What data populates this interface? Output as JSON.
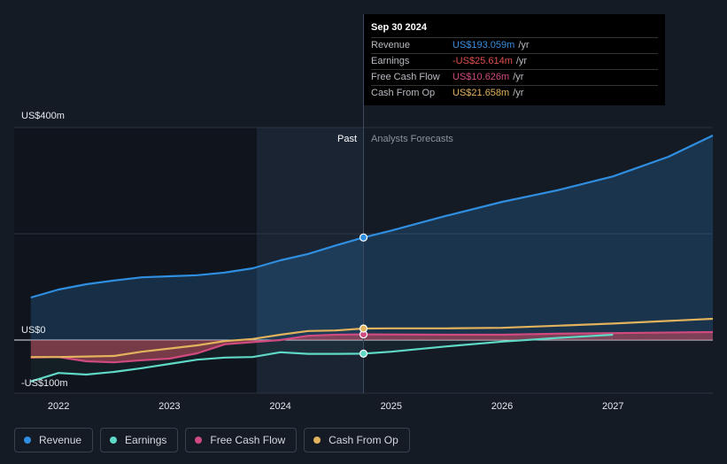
{
  "tooltip": {
    "date": "Sep 30 2024",
    "rows": [
      {
        "label": "Revenue",
        "value": "US$193.059m",
        "unit": "/yr",
        "color": "#3a8ee0"
      },
      {
        "label": "Earnings",
        "value": "-US$25.614m",
        "unit": "/yr",
        "color": "#e04f4f"
      },
      {
        "label": "Free Cash Flow",
        "value": "US$10.626m",
        "unit": "/yr",
        "color": "#d04a7f"
      },
      {
        "label": "Cash From Op",
        "value": "US$21.658m",
        "unit": "/yr",
        "color": "#e2b25c"
      }
    ]
  },
  "legend": [
    {
      "label": "Revenue",
      "color": "#2f8ee0"
    },
    {
      "label": "Earnings",
      "color": "#5fd9c6"
    },
    {
      "label": "Free Cash Flow",
      "color": "#d04a7f"
    },
    {
      "label": "Cash From Op",
      "color": "#e2b25c"
    }
  ],
  "chart_data": {
    "type": "line",
    "past_label": "Past",
    "forecast_label": "Analysts Forecasts",
    "divider_x": 2024.75,
    "y_tick_labels": [
      {
        "value": 400,
        "label": "US$400m"
      },
      {
        "value": 0,
        "label": "US$0"
      },
      {
        "value": -100,
        "label": "-US$100m"
      }
    ],
    "x_ticks": [
      2022,
      2023,
      2024,
      2025,
      2026,
      2027
    ],
    "xlim": [
      2021.6,
      2027.9
    ],
    "ylim": [
      -100,
      400
    ],
    "grid": true,
    "series": [
      {
        "name": "Revenue",
        "color": "#2f8ee0",
        "points": [
          [
            2021.75,
            80
          ],
          [
            2022.0,
            95
          ],
          [
            2022.25,
            105
          ],
          [
            2022.5,
            112
          ],
          [
            2022.75,
            118
          ],
          [
            2023.0,
            120
          ],
          [
            2023.25,
            122
          ],
          [
            2023.5,
            127
          ],
          [
            2023.75,
            135
          ],
          [
            2024.0,
            150
          ],
          [
            2024.25,
            162
          ],
          [
            2024.5,
            178
          ],
          [
            2024.75,
            193
          ],
          [
            2025.0,
            206
          ],
          [
            2025.5,
            234
          ],
          [
            2026.0,
            260
          ],
          [
            2026.5,
            282
          ],
          [
            2027.0,
            308
          ],
          [
            2027.5,
            345
          ],
          [
            2027.9,
            385
          ]
        ]
      },
      {
        "name": "Earnings",
        "color": "#5fd9c6",
        "points": [
          [
            2021.75,
            -78
          ],
          [
            2022.0,
            -62
          ],
          [
            2022.25,
            -65
          ],
          [
            2022.5,
            -60
          ],
          [
            2022.75,
            -53
          ],
          [
            2023.0,
            -45
          ],
          [
            2023.25,
            -37
          ],
          [
            2023.5,
            -33
          ],
          [
            2023.75,
            -32
          ],
          [
            2024.0,
            -23
          ],
          [
            2024.25,
            -26
          ],
          [
            2024.5,
            -26
          ],
          [
            2024.75,
            -25.6
          ],
          [
            2025.0,
            -22
          ],
          [
            2025.5,
            -12
          ],
          [
            2026.0,
            -3
          ],
          [
            2026.5,
            4
          ],
          [
            2027.0,
            10
          ]
        ]
      },
      {
        "name": "Free Cash Flow",
        "color": "#d04a7f",
        "points": [
          [
            2021.75,
            -33
          ],
          [
            2022.0,
            -32
          ],
          [
            2022.25,
            -40
          ],
          [
            2022.5,
            -42
          ],
          [
            2022.75,
            -38
          ],
          [
            2023.0,
            -35
          ],
          [
            2023.25,
            -25
          ],
          [
            2023.5,
            -8
          ],
          [
            2023.75,
            -4
          ],
          [
            2024.0,
            0
          ],
          [
            2024.25,
            8
          ],
          [
            2024.5,
            10
          ],
          [
            2024.75,
            10.6
          ],
          [
            2025.5,
            10
          ],
          [
            2026.0,
            10
          ],
          [
            2026.5,
            12
          ],
          [
            2027.0,
            13
          ],
          [
            2027.9,
            15
          ]
        ]
      },
      {
        "name": "Cash From Op",
        "color": "#e2b25c",
        "points": [
          [
            2021.75,
            -32
          ],
          [
            2022.0,
            -32
          ],
          [
            2022.25,
            -31
          ],
          [
            2022.5,
            -30
          ],
          [
            2022.75,
            -22
          ],
          [
            2023.0,
            -16
          ],
          [
            2023.25,
            -10
          ],
          [
            2023.5,
            -2
          ],
          [
            2023.75,
            2
          ],
          [
            2024.0,
            10
          ],
          [
            2024.25,
            17
          ],
          [
            2024.5,
            18
          ],
          [
            2024.75,
            21.7
          ],
          [
            2025.0,
            22
          ],
          [
            2025.5,
            22
          ],
          [
            2026.0,
            23
          ],
          [
            2026.5,
            27
          ],
          [
            2027.0,
            31
          ],
          [
            2027.9,
            40
          ]
        ]
      }
    ]
  }
}
